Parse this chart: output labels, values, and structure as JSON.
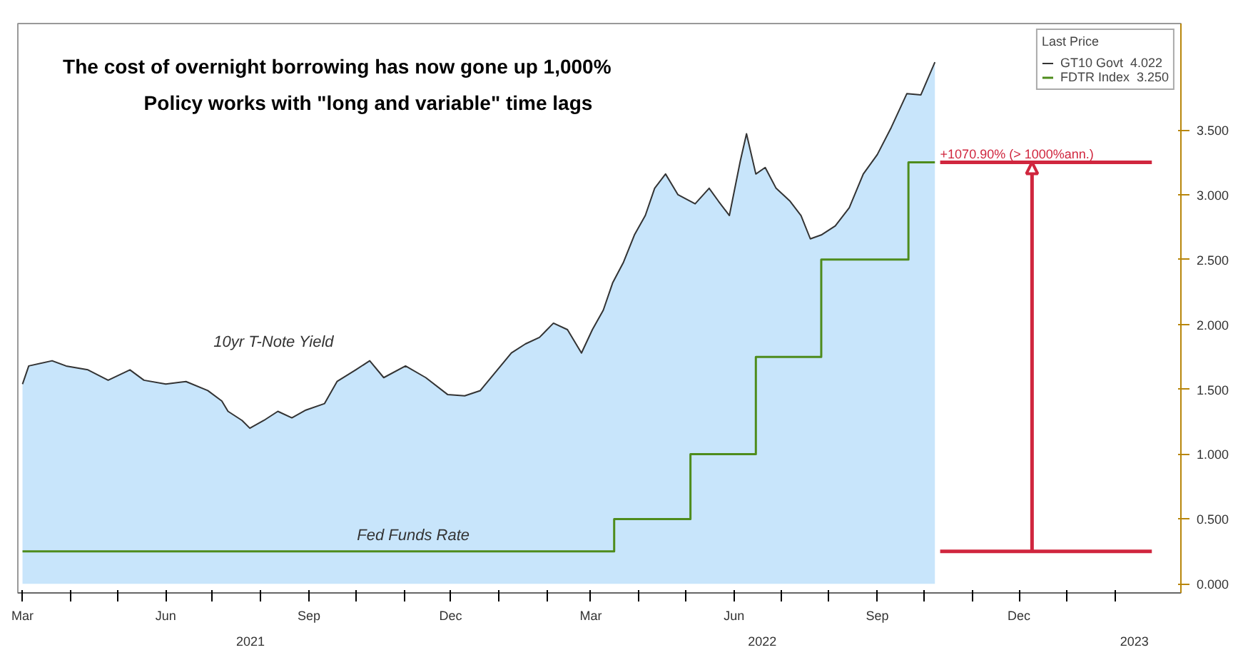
{
  "chart_data": {
    "type": "area",
    "title": "The cost of overnight borrowing has now gone up 1,000%",
    "subtitle": "Policy works with \"long and variable\" time lags",
    "legend_title": "Last Price",
    "legend": "top right",
    "grid": false,
    "xlim": [
      "2021-02-26",
      "2023-03-15"
    ],
    "ylim": [
      -0.07,
      4.32
    ],
    "yticks": [
      {
        "value": 0,
        "label": "0.000"
      },
      {
        "value": 0.5,
        "label": "0.500"
      },
      {
        "value": 1,
        "label": "1.000"
      },
      {
        "value": 1.5,
        "label": "1.500"
      },
      {
        "value": 2,
        "label": "2.000"
      },
      {
        "value": 2.5,
        "label": "2.500"
      },
      {
        "value": 3,
        "label": "3.000"
      },
      {
        "value": 3.5,
        "label": "3.500"
      }
    ],
    "xticks": [
      {
        "value": "2021-03-01",
        "label": "Mar"
      },
      {
        "value": "2021-04-01",
        "label": null
      },
      {
        "value": "2021-05-01",
        "label": null
      },
      {
        "value": "2021-06-01",
        "label": "Jun"
      },
      {
        "value": "2021-07-01",
        "label": null
      },
      {
        "value": "2021-08-01",
        "label": null
      },
      {
        "value": "2021-09-01",
        "label": "Sep"
      },
      {
        "value": "2021-10-01",
        "label": null
      },
      {
        "value": "2021-11-01",
        "label": null
      },
      {
        "value": "2021-12-01",
        "label": "Dec"
      },
      {
        "value": "2022-01-01",
        "label": null
      },
      {
        "value": "2022-02-01",
        "label": null
      },
      {
        "value": "2022-03-01",
        "label": "Mar"
      },
      {
        "value": "2022-04-01",
        "label": null
      },
      {
        "value": "2022-05-01",
        "label": null
      },
      {
        "value": "2022-06-01",
        "label": "Jun"
      },
      {
        "value": "2022-07-01",
        "label": null
      },
      {
        "value": "2022-08-01",
        "label": null
      },
      {
        "value": "2022-09-01",
        "label": "Sep"
      },
      {
        "value": "2022-10-01",
        "label": null
      },
      {
        "value": "2022-11-01",
        "label": null
      },
      {
        "value": "2022-12-01",
        "label": "Dec"
      },
      {
        "value": "2023-01-01",
        "label": null
      },
      {
        "value": "2023-02-01",
        "label": null
      }
    ],
    "series": [
      {
        "name": "GT10 Govt",
        "color": "#c8e5fb",
        "value_labels": [
          null,
          null,
          null,
          null,
          null,
          null,
          null,
          null,
          null,
          null,
          null,
          null,
          null,
          null,
          null,
          null,
          null,
          null,
          null,
          null,
          null,
          null,
          null,
          null,
          null,
          null,
          null,
          null,
          null,
          null,
          null,
          null,
          null,
          null,
          null,
          null,
          null,
          null,
          null,
          null,
          null,
          null,
          null,
          null,
          null,
          null,
          null,
          null,
          null,
          null,
          null,
          null,
          null,
          null,
          null,
          null,
          null,
          null,
          null,
          null,
          null,
          null,
          null,
          null,
          null,
          "4.022"
        ],
        "x": [
          "2021-03-01",
          "2021-03-05",
          "2021-03-20",
          "2021-03-29",
          "2021-04-12",
          "2021-04-25",
          "2021-05-09",
          "2021-05-18",
          "2021-06-01",
          "2021-06-14",
          "2021-06-28",
          "2021-07-07",
          "2021-07-11",
          "2021-07-20",
          "2021-07-25",
          "2021-08-03",
          "2021-08-12",
          "2021-08-21",
          "2021-08-30",
          "2021-09-11",
          "2021-09-19",
          "2021-10-01",
          "2021-10-10",
          "2021-10-19",
          "2021-11-02",
          "2021-11-15",
          "2021-11-29",
          "2021-12-10",
          "2021-12-20",
          "2021-12-31",
          "2022-01-09",
          "2022-01-18",
          "2022-01-27",
          "2022-02-05",
          "2022-02-14",
          "2022-02-23",
          "2022-03-02",
          "2022-03-09",
          "2022-03-15",
          "2022-03-22",
          "2022-03-29",
          "2022-04-05",
          "2022-04-11",
          "2022-04-18",
          "2022-04-26",
          "2022-05-07",
          "2022-05-16",
          "2022-05-22",
          "2022-05-29",
          "2022-06-05",
          "2022-06-09",
          "2022-06-15",
          "2022-06-21",
          "2022-06-28",
          "2022-07-07",
          "2022-07-14",
          "2022-07-20",
          "2022-07-27",
          "2022-08-05",
          "2022-08-14",
          "2022-08-23",
          "2022-09-01",
          "2022-09-10",
          "2022-09-20",
          "2022-09-29",
          "2022-10-08"
        ],
        "values": [
          1.54,
          1.68,
          1.72,
          1.68,
          1.65,
          1.57,
          1.65,
          1.57,
          1.54,
          1.56,
          1.49,
          1.41,
          1.33,
          1.26,
          1.2,
          1.26,
          1.33,
          1.28,
          1.34,
          1.39,
          1.56,
          1.65,
          1.72,
          1.59,
          1.68,
          1.59,
          1.46,
          1.45,
          1.49,
          1.65,
          1.78,
          1.85,
          1.9,
          2.01,
          1.96,
          1.78,
          1.96,
          2.11,
          2.32,
          2.48,
          2.69,
          2.84,
          3.05,
          3.16,
          3.0,
          2.93,
          3.05,
          2.95,
          2.84,
          3.26,
          3.47,
          3.16,
          3.21,
          3.05,
          2.95,
          2.84,
          2.66,
          2.69,
          2.76,
          2.9,
          3.16,
          3.31,
          3.52,
          3.78,
          3.77,
          4.022
        ]
      },
      {
        "name": "FDTR Index",
        "type": "step",
        "color": "#4e8c1c",
        "value_labels": [
          null,
          null,
          null,
          null,
          null,
          null,
          "3.250"
        ],
        "x": [
          "2021-03-01",
          "2022-03-16",
          "2022-05-04",
          "2022-06-15",
          "2022-07-27",
          "2022-09-21",
          "2022-10-08"
        ],
        "values": [
          0.25,
          0.5,
          1.0,
          1.75,
          2.5,
          3.25,
          3.25
        ]
      }
    ],
    "ref_lines": [
      {
        "axis": "y",
        "value": 3.25,
        "label": "+1070.90% (> 1000%ann.)",
        "color": "#d0263e"
      },
      {
        "axis": "y",
        "value": 0.25,
        "color": "#d0263e"
      }
    ],
    "annotations": [
      "10yr T-Note Yield",
      "Fed Funds Rate",
      "2021",
      "2022",
      "2023"
    ]
  }
}
